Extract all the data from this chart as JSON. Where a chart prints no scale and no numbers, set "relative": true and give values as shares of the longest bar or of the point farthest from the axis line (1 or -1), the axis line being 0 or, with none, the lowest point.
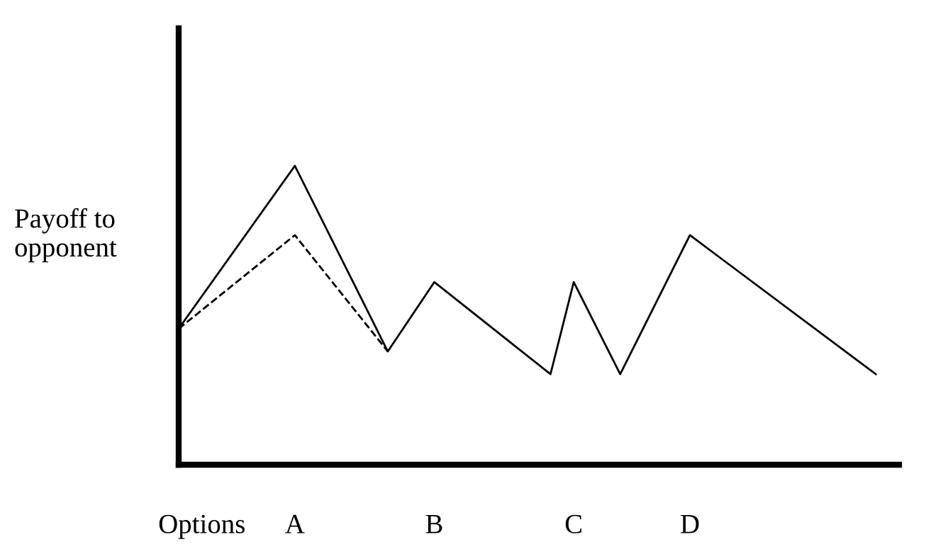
{
  "chart_data": {
    "type": "line",
    "ylabel": "Payoff to\nopponent",
    "relative": true,
    "categories": [
      null,
      "Options",
      null,
      null,
      null,
      "A",
      null,
      null,
      null,
      null,
      null,
      "B",
      null,
      null,
      null,
      null,
      null,
      "C",
      null,
      null,
      null,
      null,
      "D",
      null,
      null,
      null,
      null,
      null,
      null,
      null,
      null
    ],
    "series": [
      {
        "color": "#000000",
        "line_style": "solid",
        "values": [
          0.455,
          null,
          null,
          null,
          null,
          1,
          null,
          null,
          null,
          0.379,
          null,
          0.611,
          null,
          null,
          null,
          null,
          0.303,
          0.611,
          null,
          0.303,
          null,
          null,
          0.768,
          null,
          null,
          null,
          null,
          null,
          null,
          null,
          0.303
        ]
      },
      {
        "color": "#000000",
        "line_style": "dashed",
        "values": [
          0.455,
          null,
          null,
          null,
          null,
          0.768,
          null,
          null,
          null,
          0.379,
          null,
          null,
          null,
          null,
          null,
          null,
          null,
          null,
          null,
          null,
          null,
          null,
          null,
          null,
          null,
          null,
          null,
          null,
          null,
          null,
          null
        ]
      }
    ]
  }
}
